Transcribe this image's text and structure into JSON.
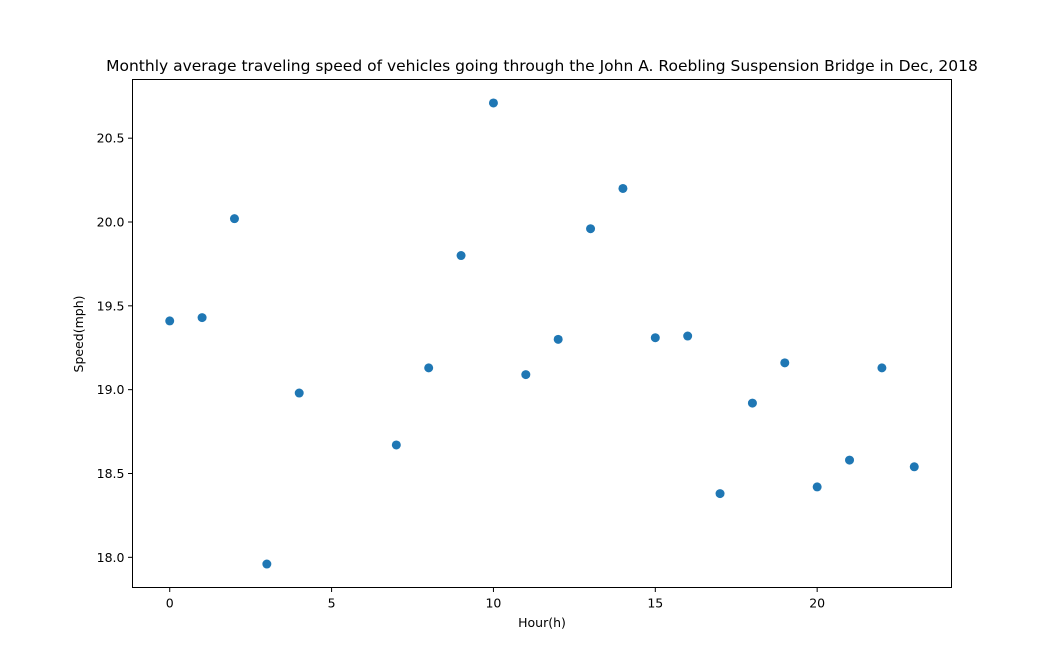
{
  "chart_data": {
    "type": "scatter",
    "title": "Monthly average traveling speed of vehicles going through the John A. Roebling Suspension Bridge in Dec, 2018",
    "xlabel": "Hour(h)",
    "ylabel": "Speed(mph)",
    "xlim": [
      -1.15,
      24.15
    ],
    "ylim": [
      17.82,
      20.85
    ],
    "xticks": [
      0,
      5,
      10,
      15,
      20
    ],
    "xtick_labels": [
      "0",
      "5",
      "10",
      "15",
      "20"
    ],
    "yticks": [
      18.0,
      18.5,
      19.0,
      19.5,
      20.0,
      20.5
    ],
    "ytick_labels": [
      "18.0",
      "18.5",
      "19.0",
      "19.5",
      "20.0",
      "20.5"
    ],
    "grid": false,
    "color": "#1f77b4",
    "x": [
      0,
      1,
      2,
      3,
      4,
      7,
      8,
      9,
      10,
      11,
      12,
      13,
      14,
      15,
      16,
      17,
      18,
      19,
      20,
      21,
      22,
      23
    ],
    "y": [
      19.41,
      19.43,
      20.02,
      17.96,
      18.98,
      18.67,
      19.13,
      19.8,
      20.71,
      19.09,
      19.3,
      19.96,
      20.2,
      19.31,
      19.32,
      18.38,
      18.92,
      19.16,
      18.42,
      18.58,
      19.13,
      18.54
    ]
  }
}
